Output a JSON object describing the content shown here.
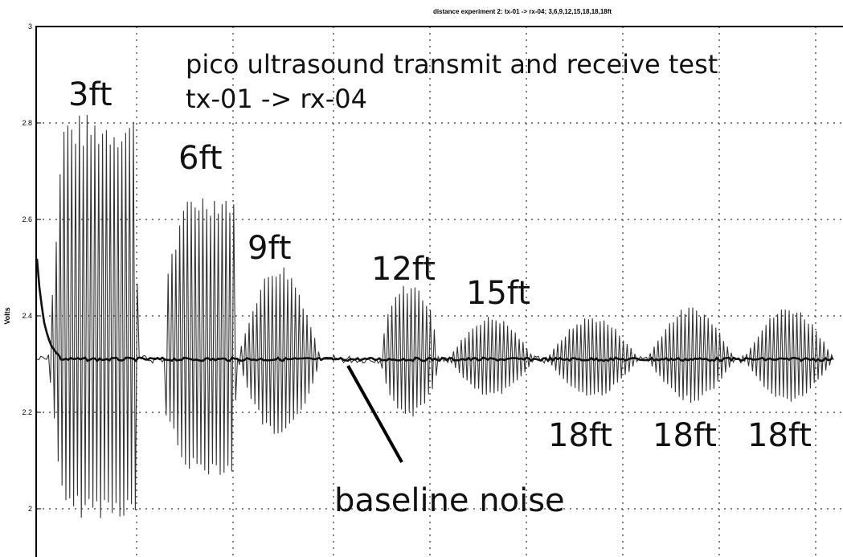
{
  "chart_data": {
    "type": "line",
    "title": "distance experiment 2: tx-01 -> rx-04; 3,6,9,12,15,18,18,18ft",
    "ylabel": "Volts",
    "xlabel": "",
    "ylim": [
      1.9,
      3.0
    ],
    "yticks": [
      "3",
      "2.8",
      "2.6",
      "2.4",
      "2.2",
      "2"
    ],
    "ytick_values": [
      3.0,
      2.8,
      2.6,
      2.4,
      2.2,
      2.0
    ],
    "grid": true,
    "baseline_volts": 2.31,
    "annotation_title_lines": [
      "pico ultrasound transmit and receive test",
      "tx-01 -> rx-04"
    ],
    "baseline_label": "baseline noise",
    "bursts": [
      {
        "label": "3ft",
        "max": 2.82,
        "min": 1.98
      },
      {
        "label": "6ft",
        "max": 2.66,
        "min": 2.07
      },
      {
        "label": "9ft",
        "max": 2.51,
        "min": 2.14
      },
      {
        "label": "12ft",
        "max": 2.47,
        "min": 2.19
      },
      {
        "label": "15ft",
        "max": 2.4,
        "min": 2.23
      },
      {
        "label": "18ft",
        "max": 2.4,
        "min": 2.23
      },
      {
        "label": "18ft",
        "max": 2.42,
        "min": 2.22
      },
      {
        "label": "18ft",
        "max": 2.42,
        "min": 2.22
      }
    ]
  }
}
